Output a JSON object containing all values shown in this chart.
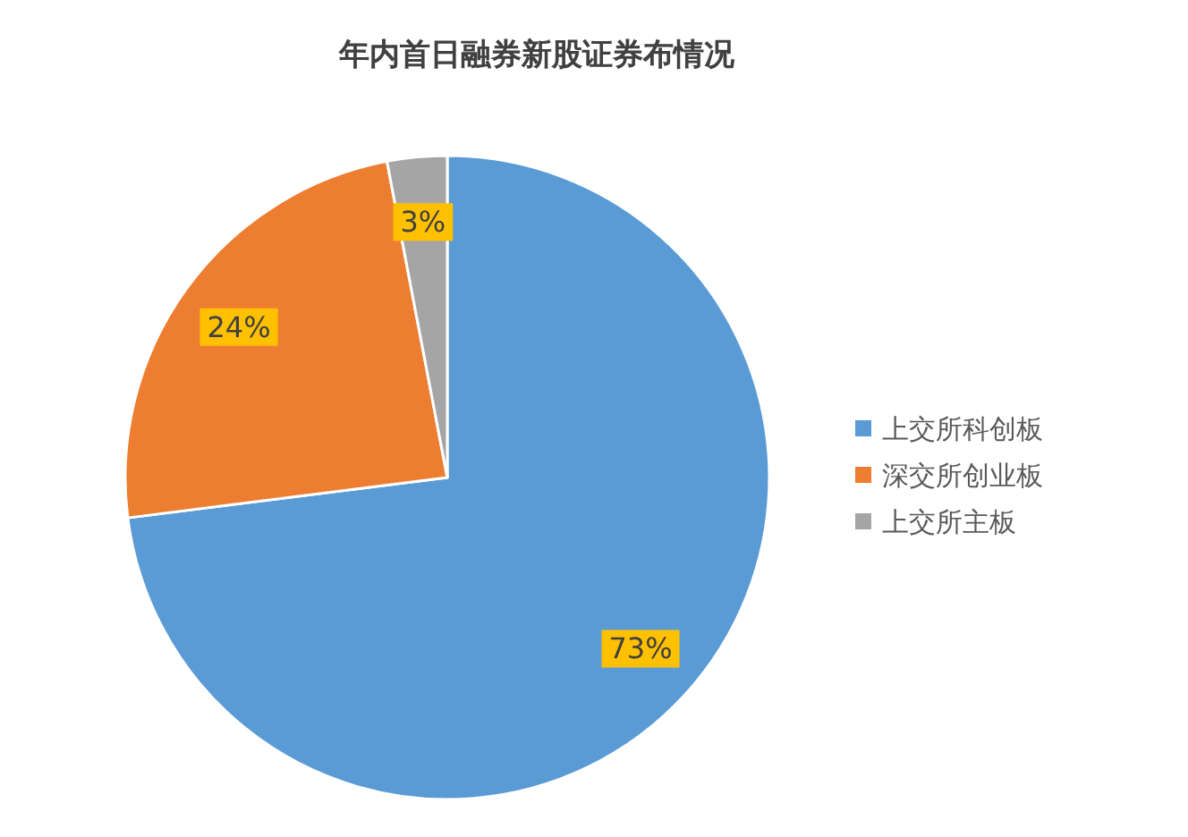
{
  "chart_data": {
    "type": "pie",
    "title": "年内首日融券新股证券布情况",
    "categories": [
      "上交所科创板",
      "深交所创业板",
      "上交所主板"
    ],
    "values": [
      73,
      24,
      3
    ],
    "colors": [
      "#5b9bd5",
      "#ed7d31",
      "#a5a5a5"
    ],
    "value_labels": [
      "73%",
      "24%",
      "3%"
    ],
    "legend": "right"
  }
}
